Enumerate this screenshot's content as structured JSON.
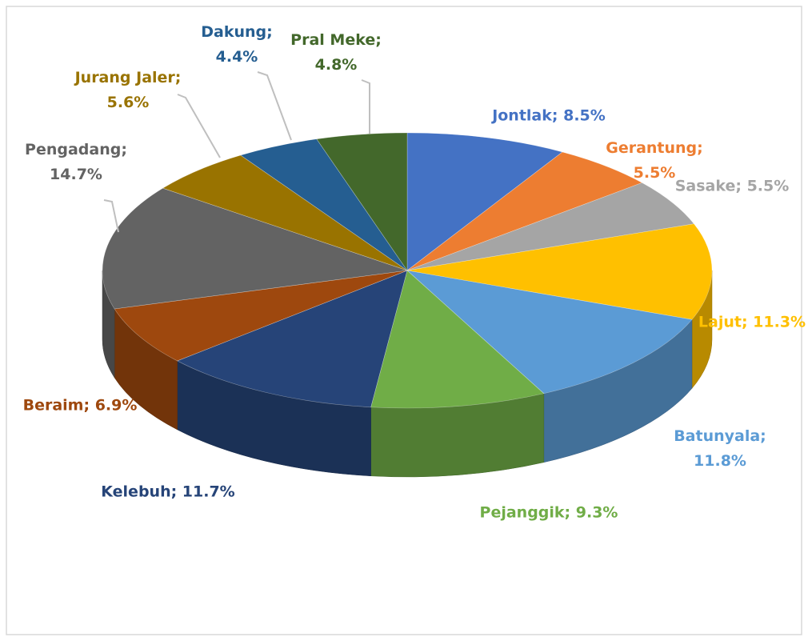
{
  "chart_data": {
    "type": "pie3d",
    "values": [
      8.5,
      5.5,
      5.5,
      11.3,
      11.8,
      9.3,
      11.7,
      6.9,
      14.7,
      5.6,
      4.4,
      4.8
    ],
    "value_labels": [
      "Jontlak; 8.5%",
      "Gerantung; 5.5%",
      "Sasake; 5.5%",
      "Lajut; 11.3%",
      "Batunyala; 11.8%",
      "Pejanggik; 9.3%",
      "Kelebuh; 11.7%",
      "Beraim; 6.9%",
      "Pengadang; 14.7%",
      "Jurang Jaler; 5.6%",
      "Dakung; 4.4%",
      "Pral Meke; 4.8%"
    ],
    "colors": [
      "#4472c4",
      "#ed7d31",
      "#a5a5a5",
      "#ffc000",
      "#5b9bd5",
      "#70ad47",
      "#264478",
      "#9e480e",
      "#636363",
      "#997300",
      "#255e91",
      "#43682b"
    ]
  }
}
